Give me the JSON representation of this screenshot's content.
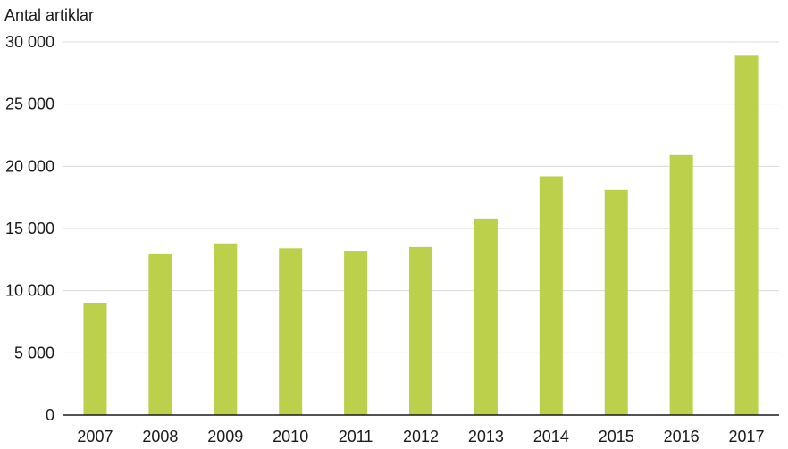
{
  "chart_data": {
    "type": "bar",
    "title": "",
    "xlabel": "",
    "ylabel": "Antal artiklar",
    "categories": [
      "2007",
      "2008",
      "2009",
      "2010",
      "2011",
      "2012",
      "2013",
      "2014",
      "2015",
      "2016",
      "2017"
    ],
    "values": [
      9000,
      13000,
      13800,
      13400,
      13200,
      13500,
      15800,
      19200,
      18100,
      20900,
      28900
    ],
    "ylim": [
      0,
      30000
    ],
    "yticks": [
      0,
      5000,
      10000,
      15000,
      20000,
      25000,
      30000
    ],
    "ytick_labels": [
      "0",
      "5 000",
      "10 000",
      "15 000",
      "20 000",
      "25 000",
      "30 000"
    ],
    "grid": true,
    "bar_color": "#bcd04c"
  }
}
